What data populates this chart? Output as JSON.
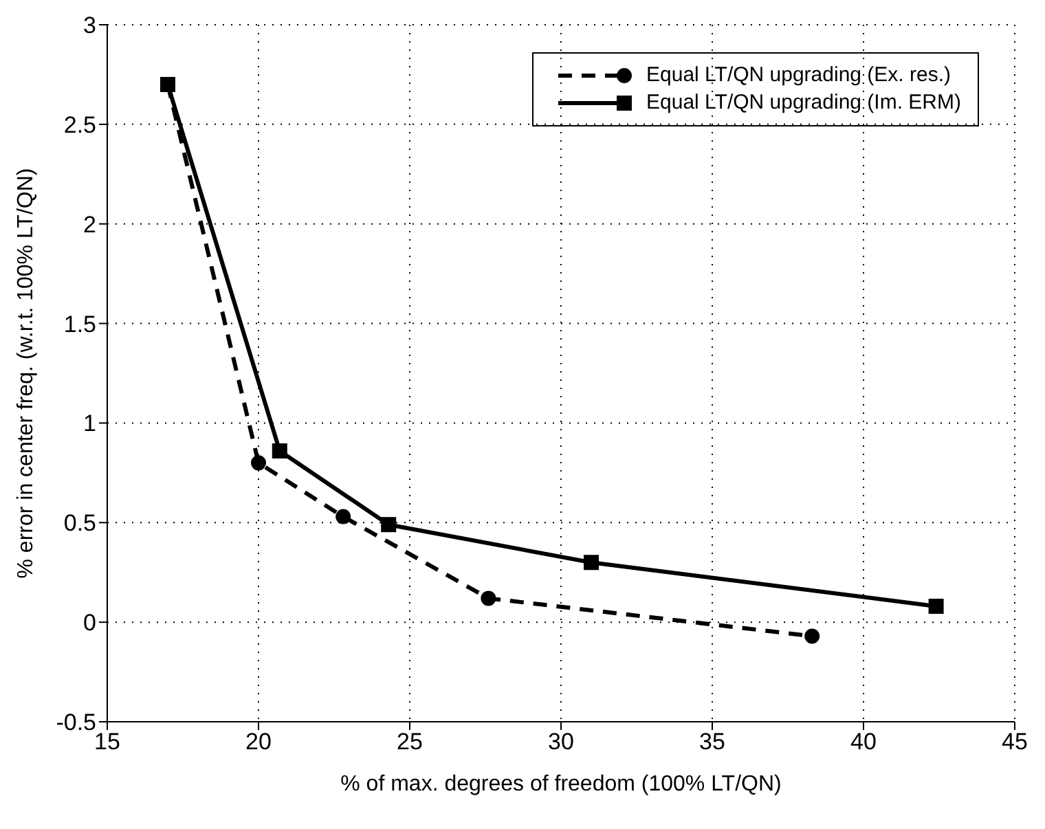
{
  "chart_data": {
    "type": "line",
    "xlabel": "% of max. degrees of freedom (100% LT/QN)",
    "ylabel": "% error in center freq. (w.r.t. 100% LT/QN)",
    "xlim": [
      15,
      45
    ],
    "xticks": [
      15,
      20,
      25,
      30,
      35,
      40,
      45
    ],
    "ylim": [
      -0.5,
      3
    ],
    "yticks": [
      -0.5,
      0,
      0.5,
      1,
      1.5,
      2,
      2.5,
      3
    ],
    "grid": true,
    "legend": "top right",
    "series": [
      {
        "name": "Equal LT/QN upgrading (Ex. res.)",
        "color": "#000000",
        "x": [
          17,
          20.0,
          22.8,
          27.6,
          38.3
        ],
        "values": [
          2.7,
          0.8,
          0.53,
          0.12,
          -0.07
        ],
        "marker": "circle",
        "line_style": "dashed"
      },
      {
        "name": "Equal LT/QN upgrading (Im. ERM)",
        "color": "#000000",
        "x": [
          17,
          20.7,
          24.3,
          31.0,
          42.4
        ],
        "values": [
          2.7,
          0.86,
          0.49,
          0.3,
          0.08
        ],
        "marker": "square",
        "line_style": "solid"
      }
    ]
  }
}
